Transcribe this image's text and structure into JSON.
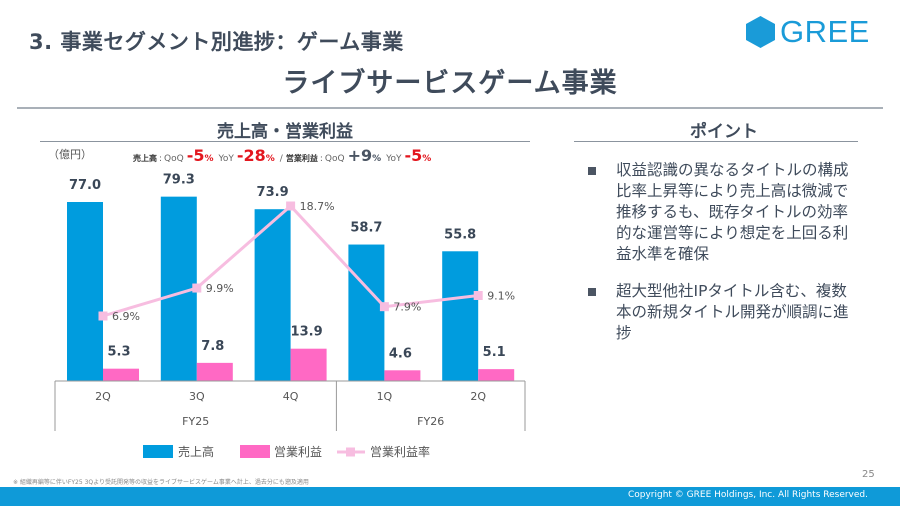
{
  "header": {
    "section_title": "3. 事業セグメント別進捗：ゲーム事業",
    "page_heading": "ライブサービスゲーム事業",
    "logo_text": "GREE"
  },
  "chart_panel": {
    "title": "売上高・営業利益",
    "unit_label": "（億円）",
    "growth": {
      "revenue_label": "売上高",
      "op_label": "営業利益",
      "sep": ":",
      "qoq": "QoQ",
      "yoy": "YoY",
      "slash": "/",
      "pct": "%",
      "revenue_qoq": "-5",
      "revenue_yoy": "-28",
      "op_qoq": "+9",
      "op_yoy": "-5"
    }
  },
  "chart_data": {
    "type": "bar",
    "title": "売上高・営業利益",
    "ylabel": "（億円）",
    "categories": [
      "2Q",
      "3Q",
      "4Q",
      "1Q",
      "2Q"
    ],
    "fiscal_groups": [
      {
        "label": "FY25",
        "span": 3
      },
      {
        "label": "FY26",
        "span": 2
      }
    ],
    "series": [
      {
        "name": "売上高",
        "kind": "bar",
        "color": "#009cde",
        "values": [
          77.0,
          79.3,
          73.9,
          58.7,
          55.8
        ],
        "labels": [
          "77.0",
          "79.3",
          "73.9",
          "58.7",
          "55.8"
        ]
      },
      {
        "name": "営業利益",
        "kind": "bar",
        "color": "#ff69c4",
        "values": [
          5.3,
          7.8,
          13.9,
          4.6,
          5.1
        ],
        "labels": [
          "5.3",
          "7.8",
          "13.9",
          "4.6",
          "5.1"
        ]
      },
      {
        "name": "営業利益率",
        "kind": "line",
        "color": "#f7bde0",
        "values": [
          6.9,
          9.9,
          18.7,
          7.9,
          9.1
        ],
        "labels": [
          "6.9%",
          "9.9%",
          "18.7%",
          "7.9%",
          "9.1%"
        ]
      }
    ],
    "ylim": [
      0,
      80
    ],
    "grid": false,
    "legend": "bottom"
  },
  "points": {
    "title": "ポイント",
    "items": [
      "収益認識の異なるタイトルの構成比率上昇等により売上高は微減で推移するも、既存タイトルの効率的な運営等により想定を上回る利益水準を確保",
      "超大型他社IPタイトル含む、複数本の新規タイトル開発が順調に進捗"
    ]
  },
  "footer": {
    "page_number": "25",
    "footnote": "※ 組織再編等に伴いFY25 3Qより受託開発等の収益をライブサービスゲーム事業へ計上、過去分にも遡及適用",
    "copyright": "Copyright © GREE Holdings, Inc. All Rights Reserved."
  }
}
